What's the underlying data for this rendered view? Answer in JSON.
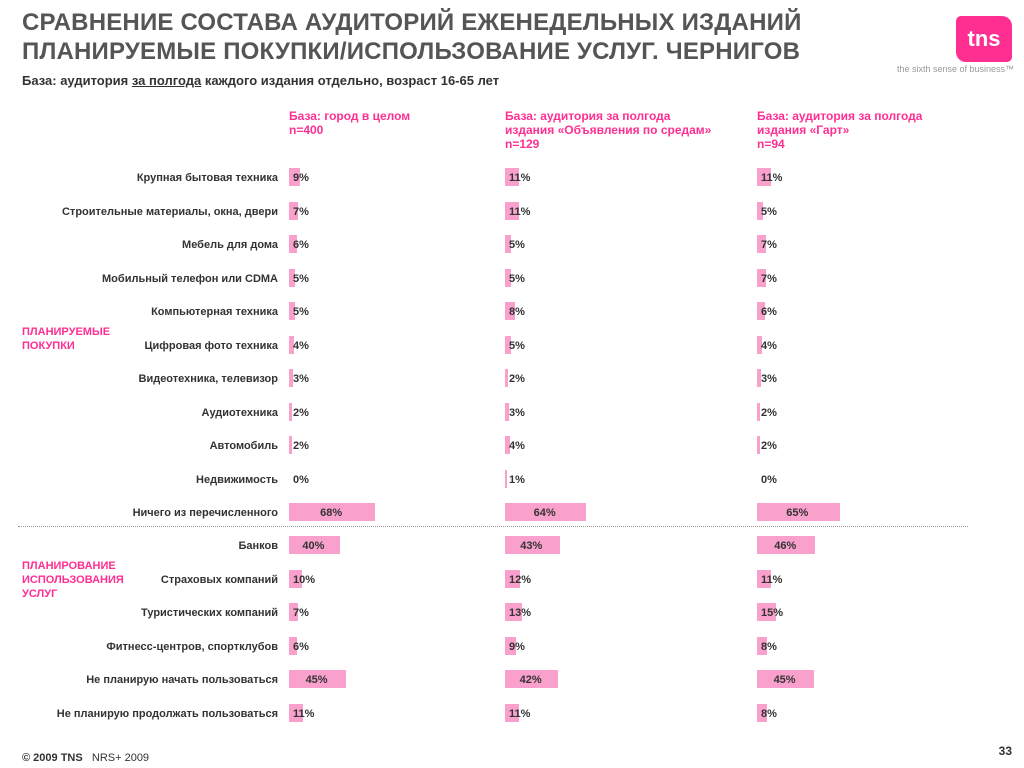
{
  "header": {
    "title_line1": "СРАВНЕНИЕ СОСТАВА АУДИТОРИЙ ЕЖЕНЕДЕЛЬНЫХ ИЗДАНИЙ",
    "title_line2": "ПЛАНИРУЕМЫЕ ПОКУПКИ/ИСПОЛЬЗОВАНИЕ УСЛУГ. ЧЕРНИГОВ",
    "base_prefix": "База: аудитория ",
    "base_underlined": "за полгода",
    "base_suffix": " каждого издания отдельно, возраст 16-65 лет"
  },
  "logo": {
    "text": "tns",
    "tagline": "the sixth sense of business™",
    "color": "#ff2f92"
  },
  "groups": {
    "purchases": "ПЛАНИРУЕМЫЕ\nПОКУПКИ",
    "services": "ПЛАНИРОВАНИЕ\nИСПОЛЬЗОВАНИЯ\nУСЛУГ"
  },
  "footer": {
    "copyright": "© 2009 TNS",
    "source": "NRS+ 2009",
    "page_number": "33"
  },
  "chart_data": {
    "type": "bar",
    "orientation": "horizontal",
    "bar_color": "#f9a0cc",
    "accent_color": "#ff2f92",
    "value_suffix": "%",
    "categories": [
      "Крупная бытовая техника",
      "Строительные материалы, окна, двери",
      "Мебель для дома",
      "Мобильный телефон или CDMA",
      "Компьютерная техника",
      "Цифровая фото техника",
      "Видеотехника, телевизор",
      "Аудиотехника",
      "Автомобиль",
      "Недвижимость",
      "Ничего из перечисленного",
      "Банков",
      "Страховых компаний",
      "Туристических компаний",
      "Фитнесс-центров, спортклубов",
      "Не планирую начать пользоваться",
      "Не планирую продолжать пользоваться"
    ],
    "series": [
      {
        "name": "База: город в целом\nn=400",
        "values": [
          9,
          7,
          6,
          5,
          5,
          4,
          3,
          2,
          2,
          0,
          68,
          40,
          10,
          7,
          6,
          45,
          11
        ]
      },
      {
        "name": "База: аудитория за полгода\nиздания «Объявления по средам»\nn=129",
        "values": [
          11,
          11,
          5,
          5,
          8,
          5,
          2,
          3,
          4,
          1,
          64,
          43,
          12,
          13,
          9,
          42,
          11
        ]
      },
      {
        "name": "База: аудитория за полгода\nиздания «Гарт»\nn=94",
        "values": [
          11,
          5,
          7,
          7,
          6,
          4,
          3,
          2,
          2,
          0,
          65,
          46,
          11,
          15,
          8,
          45,
          8
        ]
      }
    ],
    "xlim": [
      0,
      100
    ]
  }
}
